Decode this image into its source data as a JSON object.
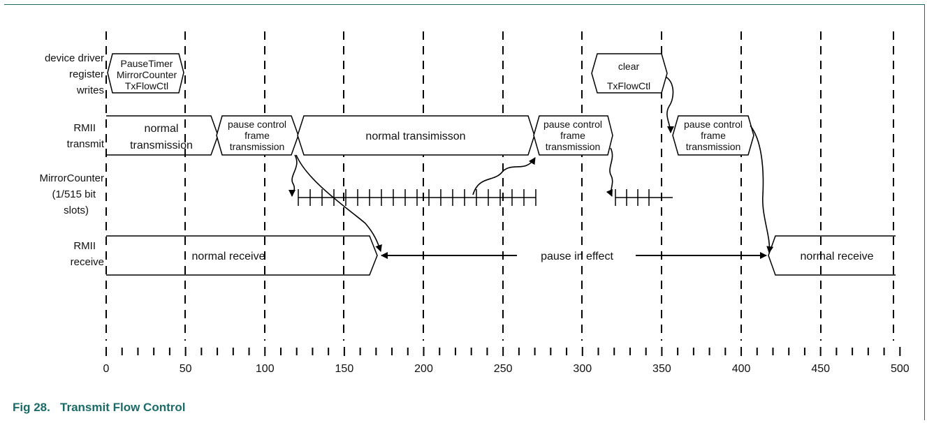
{
  "row_labels": {
    "device_driver": [
      "device driver",
      "register",
      "writes"
    ],
    "rmii_transmit": [
      "RMII",
      "transmit"
    ],
    "mirror_counter": [
      "MirrorCounter",
      "(1/515 bit",
      "slots)"
    ],
    "rmii_receive": [
      "RMII",
      "receive"
    ]
  },
  "register_writes": {
    "first": [
      "PauseTimer",
      "MirrorCounter",
      "TxFlowCtl"
    ],
    "second": [
      "clear",
      "TxFlowCtl"
    ]
  },
  "transmit_segments": {
    "normal_1": [
      "normal",
      "transmission"
    ],
    "pause_1": [
      "pause control",
      "frame",
      "transmission"
    ],
    "normal_2": [
      "normal transimisson"
    ],
    "pause_2": [
      "pause control",
      "frame",
      "transmission"
    ],
    "pause_3": [
      "pause control",
      "frame",
      "transmission"
    ]
  },
  "receive_segments": {
    "normal_1": "normal receive",
    "pause": "pause in effect",
    "normal_2": "normal receive"
  },
  "time_axis": {
    "ticks": [
      "0",
      "50",
      "100",
      "150",
      "200",
      "250",
      "300",
      "350",
      "400",
      "450",
      "500"
    ]
  },
  "caption": {
    "label": "Fig 28.",
    "title": "Transmit Flow Control"
  }
}
